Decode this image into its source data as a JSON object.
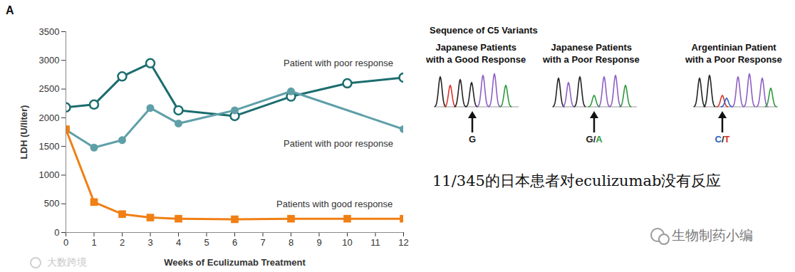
{
  "chart_data": {
    "type": "line",
    "panel_label": "A",
    "x_label": "Weeks of Eculizumab Treatment",
    "y_label": "LDH (U/liter)",
    "xlim": [
      0,
      12
    ],
    "xticks": [
      0,
      1,
      2,
      3,
      4,
      5,
      6,
      7,
      8,
      9,
      10,
      11,
      12
    ],
    "ylim": [
      0,
      3500
    ],
    "yticks": [
      0,
      500,
      1000,
      1500,
      2000,
      2500,
      3000,
      3500
    ],
    "grid": false,
    "series": [
      {
        "name": "Patient with poor response",
        "color": "#1b6d6e",
        "marker": "open_circle",
        "x": [
          0,
          1,
          2,
          3,
          4,
          6,
          8,
          10,
          12
        ],
        "values": [
          2180,
          2230,
          2720,
          2950,
          2130,
          2030,
          2370,
          2600,
          2700
        ]
      },
      {
        "name": "Patient with poor response",
        "color": "#5f9fa8",
        "marker": "circle",
        "x": [
          0,
          1,
          2,
          3,
          4,
          6,
          8,
          12
        ],
        "values": [
          1790,
          1480,
          1610,
          2170,
          1900,
          2130,
          2460,
          1800
        ]
      },
      {
        "name": "Patients with good response",
        "color": "#f07f14",
        "marker": "square",
        "x": [
          0,
          1,
          2,
          3,
          4,
          6,
          8,
          10,
          12
        ],
        "values": [
          1800,
          530,
          320,
          260,
          240,
          230,
          240,
          240,
          240
        ]
      }
    ]
  },
  "sequence_panel": {
    "title": "Sequence of C5 Variants",
    "panels": [
      {
        "title_lines": [
          "Japanese Patients",
          "with a Good Response"
        ],
        "base_parts": [
          {
            "text": "G",
            "color": "#222222"
          }
        ]
      },
      {
        "title_lines": [
          "Japanese Patients",
          "with a Poor Response"
        ],
        "base_parts": [
          {
            "text": "G",
            "color": "#222222"
          },
          {
            "text": "/",
            "color": "#222222"
          },
          {
            "text": "A",
            "color": "#2e9a3c"
          }
        ]
      },
      {
        "title_lines": [
          "Argentinian Patient",
          "with a Poor Response"
        ],
        "base_parts": [
          {
            "text": "C",
            "color": "#2a5fc4"
          },
          {
            "text": "/",
            "color": "#222222"
          },
          {
            "text": "T",
            "color": "#d9342b"
          }
        ]
      }
    ]
  },
  "caption": "11/345的日本患者对eculizumab没有反应",
  "watermarks": [
    "生物制药小编",
    "大数跨境"
  ]
}
